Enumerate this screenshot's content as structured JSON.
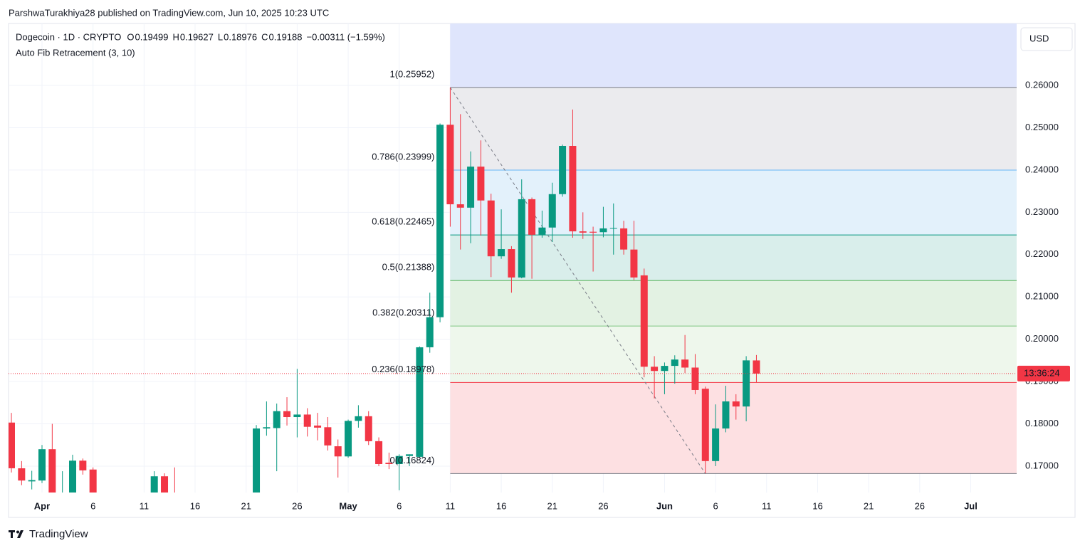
{
  "header": {
    "attribution": "ParshwaTurakhiya28 published on TradingView.com, Jun 10, 2025 10:23 UTC",
    "brand": "TradingView"
  },
  "chart_data": {
    "type": "candlestick",
    "title": "Dogecoin · 1D · CRYPTO",
    "ohlc_labels": [
      "O",
      "H",
      "L",
      "C"
    ],
    "change": "−0.00311 (−1.59%)",
    "currency": "USD",
    "countdown": "13:36:24",
    "categories": [
      null,
      null,
      null,
      "Apr",
      null,
      null,
      null,
      null,
      "6",
      null,
      null,
      null,
      null,
      "11",
      null,
      null,
      null,
      null,
      "16",
      null,
      null,
      null,
      null,
      "21",
      null,
      null,
      null,
      null,
      "26",
      null,
      null,
      null,
      null,
      "May",
      null,
      null,
      null,
      null,
      "6",
      null,
      null,
      null,
      null,
      "11",
      null,
      null,
      null,
      null,
      "16",
      null,
      null,
      null,
      null,
      "21",
      null,
      null,
      null,
      null,
      "26",
      null,
      null,
      null,
      null,
      null,
      "Jun",
      null,
      null,
      null,
      null,
      "6",
      null,
      null,
      null,
      null,
      "11",
      null,
      null,
      null,
      null,
      "16",
      null,
      null,
      null,
      null,
      "21",
      null,
      null,
      null,
      null,
      "26",
      null,
      null,
      null,
      null,
      "Jul",
      null,
      null,
      null
    ],
    "open": [
      0.1803,
      0.1695,
      0.1664,
      0.1666,
      0.174,
      0.163,
      0.1635,
      0.1713,
      0.1692,
      null,
      null,
      null,
      null,
      null,
      0.162,
      0.1676,
      0.1625,
      null,
      null,
      null,
      null,
      null,
      null,
      null,
      0.16,
      0.1789,
      0.179,
      0.183,
      0.1816,
      0.1822,
      0.1796,
      0.1792,
      0.1747,
      0.1723,
      0.1807,
      0.1818,
      0.1759,
      0.1708,
      0.1705,
      0.1724,
      0.1722,
      0.1981,
      0.2052,
      0.2507,
      0.2319,
      0.2311,
      0.2408,
      0.2328,
      0.2196,
      0.2213,
      0.2146,
      0.2331,
      0.2247,
      0.2264,
      0.2343,
      0.2457,
      0.2255,
      0.2254,
      0.2253,
      0.2262,
      0.2262,
      0.2212,
      0.2151,
      0.1935,
      0.1925,
      0.1937,
      0.1952,
      0.1933,
      0.1883,
      0.1712,
      0.1789,
      0.1853,
      0.1841,
      0.19499,
      null,
      null,
      null,
      null,
      null,
      null,
      null,
      null,
      null,
      null,
      null,
      null,
      null,
      null,
      null,
      null,
      null,
      null,
      null,
      null,
      null,
      null,
      null,
      null
    ],
    "high": [
      0.1826,
      0.1712,
      0.1689,
      0.175,
      0.18,
      0.1688,
      0.1727,
      0.1718,
      0.1697,
      null,
      null,
      null,
      null,
      null,
      0.1688,
      0.1683,
      0.1697,
      null,
      null,
      null,
      null,
      null,
      null,
      null,
      0.1797,
      0.1853,
      0.1848,
      0.1863,
      0.193,
      0.1837,
      0.1826,
      0.1816,
      0.1763,
      0.181,
      0.1844,
      0.183,
      0.1768,
      0.1732,
      0.1728,
      0.1728,
      0.1983,
      0.211,
      0.251,
      0.2595,
      0.2532,
      0.2444,
      0.247,
      0.2344,
      0.2307,
      0.222,
      0.2378,
      0.2335,
      0.2304,
      0.237,
      0.246,
      0.2543,
      0.23,
      0.2266,
      0.2313,
      0.2321,
      0.228,
      0.228,
      0.2167,
      0.196,
      0.1945,
      0.1962,
      0.201,
      0.1965,
      0.1888,
      0.1846,
      0.189,
      0.187,
      0.196,
      0.19627,
      null,
      null,
      null,
      null,
      null,
      null,
      null,
      null,
      null,
      null,
      null,
      null,
      null,
      null,
      null,
      null,
      null,
      null,
      null,
      null,
      null,
      null,
      null,
      null
    ],
    "low": [
      0.1685,
      0.1655,
      0.1645,
      0.166,
      0.162,
      0.161,
      0.16,
      0.168,
      0.155,
      null,
      null,
      null,
      null,
      null,
      0.161,
      0.16,
      0.159,
      null,
      null,
      null,
      null,
      null,
      null,
      null,
      0.158,
      0.1772,
      0.1688,
      0.1796,
      0.1768,
      0.177,
      0.1761,
      0.1737,
      0.1673,
      0.172,
      0.1791,
      0.175,
      0.17,
      0.1693,
      0.1643,
      0.17,
      0.172,
      0.1968,
      0.204,
      0.2266,
      0.2212,
      0.2227,
      0.2245,
      0.2147,
      0.219,
      0.211,
      0.2144,
      0.2143,
      0.224,
      0.223,
      0.2337,
      0.224,
      0.2237,
      0.216,
      0.2241,
      0.22,
      0.22,
      0.214,
      0.191,
      0.186,
      0.187,
      0.1895,
      0.192,
      0.187,
      0.1683,
      0.17,
      0.178,
      0.181,
      0.1806,
      0.18976,
      null,
      null,
      null,
      null,
      null,
      null,
      null,
      null,
      null,
      null,
      null,
      null,
      null,
      null,
      null,
      null,
      null,
      null,
      null,
      null,
      null,
      null,
      null,
      null
    ],
    "close": [
      0.1695,
      0.1666,
      0.1667,
      0.174,
      0.163,
      0.1635,
      0.1713,
      0.169,
      0.16,
      null,
      null,
      null,
      null,
      null,
      0.1676,
      0.162,
      0.1615,
      null,
      null,
      null,
      null,
      null,
      null,
      null,
      0.1789,
      0.1792,
      0.183,
      0.1816,
      0.1822,
      0.1793,
      0.1791,
      0.1749,
      0.1723,
      0.1807,
      0.1818,
      0.1759,
      0.1705,
      0.1705,
      0.1724,
      0.1728,
      0.1981,
      0.2052,
      0.2507,
      0.2319,
      0.2311,
      0.2408,
      0.2328,
      0.2196,
      0.2213,
      0.2146,
      0.2331,
      0.2247,
      0.2264,
      0.2343,
      0.2457,
      0.2255,
      0.2252,
      0.2252,
      0.2262,
      0.2263,
      0.2212,
      0.2146,
      0.1935,
      0.1925,
      0.1937,
      0.1952,
      0.1933,
      0.188,
      0.1712,
      0.1789,
      0.1853,
      0.1841,
      0.195,
      0.19188,
      null,
      null,
      null,
      null,
      null,
      null,
      null,
      null,
      null,
      null,
      null,
      null,
      null,
      null,
      null,
      null,
      null,
      null,
      null,
      null,
      null,
      null,
      null,
      null
    ],
    "up_color": "#089981",
    "down_color": "#f23645",
    "ylim": [
      0.16377,
      0.2743
    ],
    "yticks": [
      {
        "value": 0.26,
        "label": "0.26000"
      },
      {
        "value": 0.25,
        "label": "0.25000"
      },
      {
        "value": 0.24,
        "label": "0.24000"
      },
      {
        "value": 0.23,
        "label": "0.23000"
      },
      {
        "value": 0.22,
        "label": "0.22000"
      },
      {
        "value": 0.21,
        "label": "0.21000"
      },
      {
        "value": 0.2,
        "label": "0.20000"
      },
      {
        "value": 0.19,
        "label": "0.19000"
      },
      {
        "value": 0.18,
        "label": "0.18000"
      },
      {
        "value": 0.17,
        "label": "0.17000"
      }
    ],
    "grid": true,
    "indicator": {
      "name": "Auto Fib Retracement (3, 10)",
      "fill_above": "#dfe5fc",
      "levels": [
        {
          "value": 0.25952,
          "label": "1(0.25952)",
          "color": "#787b86",
          "fill": "#ebebee"
        },
        {
          "value": 0.23999,
          "label": "0.786(0.23999)",
          "color": "#64b5f6",
          "fill": "#e3f1fb"
        },
        {
          "value": 0.22465,
          "label": "0.618(0.22465)",
          "color": "#089981",
          "fill": "#d9eeeb"
        },
        {
          "value": 0.21388,
          "label": "0.5(0.21388)",
          "color": "#4caf50",
          "fill": "#e3f2e3"
        },
        {
          "value": 0.20311,
          "label": "0.382(0.20311)",
          "color": "#81c784",
          "fill": "#eef7ec"
        },
        {
          "value": 0.18978,
          "label": "0.236(0.18978)",
          "color": "#f23645",
          "fill": "#fde0e2"
        },
        {
          "value": 0.16824,
          "label": "0(0.16824)",
          "color": "#787b86",
          "fill": null
        }
      ]
    }
  }
}
